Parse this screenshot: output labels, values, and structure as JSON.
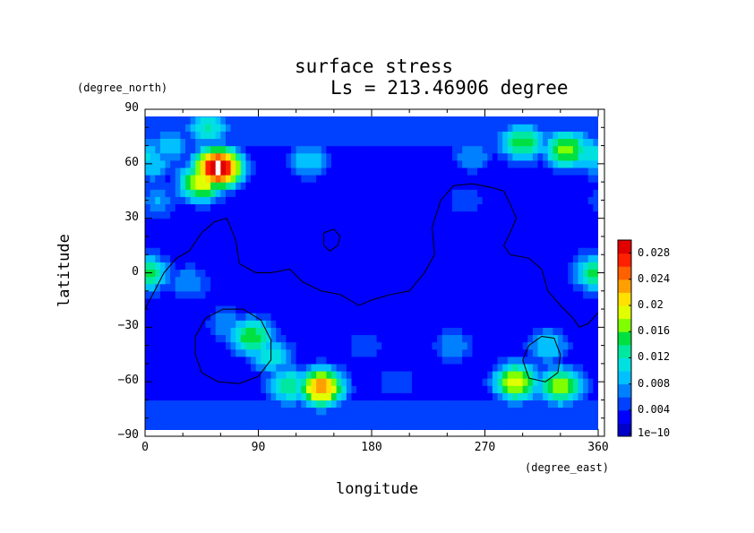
{
  "chart_data": {
    "type": "heatmap",
    "title": "surface stress",
    "subtitle": "Ls = 213.46906 degree",
    "xlabel": "longitude",
    "ylabel": "latitude",
    "xunit": "(degree_east)",
    "yunit": "(degree_north)",
    "xlim": [
      0,
      360
    ],
    "ylim": [
      -90,
      90
    ],
    "x_ticks": [
      "0",
      "90",
      "180",
      "270",
      "360"
    ],
    "y_ticks": [
      "90",
      "60",
      "30",
      "0",
      "−30",
      "−60",
      "−90"
    ],
    "colorbar": {
      "range": [
        0,
        0.03
      ],
      "tick_labels": [
        "0.028",
        "0.024",
        "0.02",
        "0.016",
        "0.012",
        "0.008",
        "0.004",
        "1e−10"
      ],
      "tick_values": [
        0.028,
        0.024,
        0.02,
        0.016,
        0.012,
        0.008,
        0.004,
        0.0
      ],
      "colors": [
        "#0000c8",
        "#0000ff",
        "#0040ff",
        "#0080ff",
        "#00c0ff",
        "#00e0e0",
        "#00e8a0",
        "#00e040",
        "#80ff00",
        "#e0ff00",
        "#ffe000",
        "#ffa000",
        "#ff6000",
        "#ff2000",
        "#e00000"
      ]
    },
    "background_level": 0.002,
    "hotspots": [
      {
        "lon": 58,
        "lat": 58,
        "value": 0.032
      },
      {
        "lon": 45,
        "lat": 50,
        "value": 0.02
      },
      {
        "lon": 50,
        "lat": 80,
        "value": 0.012
      },
      {
        "lon": 20,
        "lat": 70,
        "value": 0.01
      },
      {
        "lon": 5,
        "lat": 60,
        "value": 0.01
      },
      {
        "lon": 300,
        "lat": 72,
        "value": 0.016
      },
      {
        "lon": 335,
        "lat": 68,
        "value": 0.018
      },
      {
        "lon": 355,
        "lat": 65,
        "value": 0.012
      },
      {
        "lon": 260,
        "lat": 65,
        "value": 0.008
      },
      {
        "lon": 130,
        "lat": 62,
        "value": 0.01
      },
      {
        "lon": 85,
        "lat": -35,
        "value": 0.016
      },
      {
        "lon": 100,
        "lat": -45,
        "value": 0.012
      },
      {
        "lon": 65,
        "lat": -28,
        "value": 0.008
      },
      {
        "lon": 140,
        "lat": -63,
        "value": 0.024
      },
      {
        "lon": 115,
        "lat": -62,
        "value": 0.014
      },
      {
        "lon": 0,
        "lat": 0,
        "value": 0.016
      },
      {
        "lon": 35,
        "lat": -5,
        "value": 0.008
      },
      {
        "lon": 295,
        "lat": -60,
        "value": 0.02
      },
      {
        "lon": 330,
        "lat": -62,
        "value": 0.018
      },
      {
        "lon": 245,
        "lat": -40,
        "value": 0.008
      },
      {
        "lon": 320,
        "lat": -40,
        "value": 0.01
      },
      {
        "lon": 175,
        "lat": -40,
        "value": 0.006
      },
      {
        "lon": 200,
        "lat": -60,
        "value": 0.006
      },
      {
        "lon": 355,
        "lat": 5,
        "value": 0.008
      },
      {
        "lon": 10,
        "lat": 40,
        "value": 0.008
      },
      {
        "lon": 255,
        "lat": 40,
        "value": 0.006
      }
    ],
    "contours": [
      {
        "name": "continent-outline",
        "points": [
          [
            0,
            -20
          ],
          [
            15,
            0
          ],
          [
            25,
            8
          ],
          [
            35,
            12
          ],
          [
            45,
            22
          ],
          [
            55,
            28
          ],
          [
            65,
            30
          ],
          [
            72,
            18
          ],
          [
            75,
            5
          ],
          [
            88,
            0
          ],
          [
            100,
            0
          ],
          [
            115,
            2
          ],
          [
            125,
            -5
          ],
          [
            140,
            -10
          ],
          [
            155,
            -12
          ],
          [
            170,
            -18
          ],
          [
            180,
            -15
          ],
          [
            195,
            -12
          ],
          [
            210,
            -10
          ],
          [
            222,
            0
          ],
          [
            230,
            10
          ],
          [
            228,
            25
          ],
          [
            235,
            40
          ],
          [
            245,
            48
          ],
          [
            260,
            49
          ],
          [
            275,
            47
          ],
          [
            285,
            45
          ],
          [
            290,
            38
          ],
          [
            295,
            30
          ],
          [
            290,
            22
          ],
          [
            285,
            15
          ],
          [
            290,
            10
          ],
          [
            305,
            8
          ],
          [
            315,
            2
          ],
          [
            320,
            -10
          ],
          [
            330,
            -18
          ],
          [
            340,
            -25
          ],
          [
            345,
            -30
          ],
          [
            352,
            -28
          ],
          [
            360,
            -22
          ]
        ]
      },
      {
        "name": "small-loop-north",
        "points": [
          [
            142,
            22
          ],
          [
            150,
            24
          ],
          [
            155,
            20
          ],
          [
            153,
            15
          ],
          [
            147,
            12
          ],
          [
            142,
            15
          ],
          [
            142,
            22
          ]
        ]
      },
      {
        "name": "loop-south-west",
        "points": [
          [
            40,
            -35
          ],
          [
            48,
            -25
          ],
          [
            62,
            -20
          ],
          [
            78,
            -20
          ],
          [
            92,
            -26
          ],
          [
            100,
            -37
          ],
          [
            100,
            -48
          ],
          [
            90,
            -57
          ],
          [
            75,
            -61
          ],
          [
            58,
            -60
          ],
          [
            45,
            -55
          ],
          [
            40,
            -45
          ],
          [
            40,
            -35
          ]
        ]
      },
      {
        "name": "loop-south-east",
        "points": [
          [
            300,
            -48
          ],
          [
            305,
            -40
          ],
          [
            315,
            -35
          ],
          [
            325,
            -36
          ],
          [
            330,
            -45
          ],
          [
            328,
            -55
          ],
          [
            318,
            -60
          ],
          [
            305,
            -58
          ],
          [
            300,
            -48
          ]
        ]
      }
    ]
  }
}
